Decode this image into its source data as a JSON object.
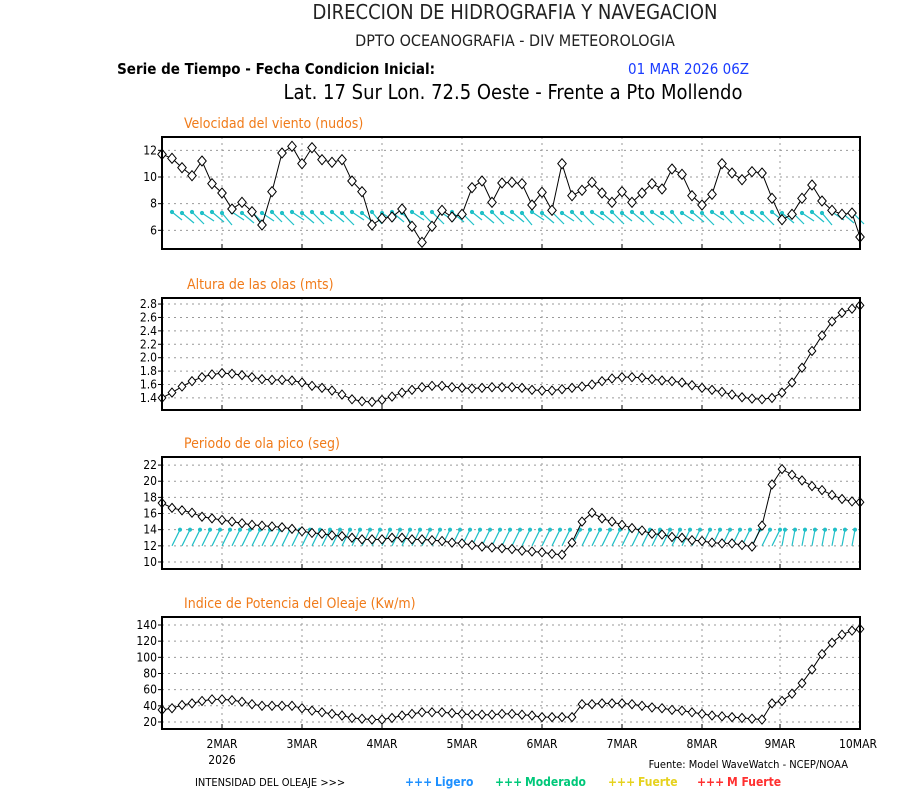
{
  "header": {
    "line1": "DIRECCION DE HIDROGRAFIA Y NAVEGACION",
    "line2": "DPTO OCEANOGRAFIA - DIV METEOROLOGIA",
    "line3_label": "Serie de Tiempo - Fecha Condicion Inicial:",
    "line3_date": "01 MAR 2026 06Z",
    "line4": "Lat. 17 Sur  Lon. 72.5 Oeste - Frente a Pto Mollendo"
  },
  "footer": {
    "year": "2026",
    "source": "Fuente: Model WaveWatch - NCEP/NOAA",
    "legend_label": "INTENSIDAD DEL OLEAJE >>>",
    "legend": [
      {
        "marker": "+++",
        "label": "Ligero",
        "color": "#1e90ff"
      },
      {
        "marker": "+++",
        "label": "Moderado",
        "color": "#00c87a"
      },
      {
        "marker": "+++",
        "label": "Fuerte",
        "color": "#e6d21e"
      },
      {
        "marker": "+++",
        "label": "M Fuerte",
        "color": "#ff3030"
      }
    ]
  },
  "colors": {
    "title": "#f07b1a",
    "arrows": "#20c0c8",
    "line": "#000000"
  },
  "chart_data": [
    {
      "type": "line",
      "title": "Velocidad del viento (nudos)",
      "x_start": "1MAR 06Z",
      "x_step_hours": 3,
      "xticks": [
        "2MAR",
        "3MAR",
        "4MAR",
        "5MAR",
        "6MAR",
        "7MAR",
        "8MAR",
        "9MAR",
        "10MAR"
      ],
      "yticks": [
        6,
        8,
        10,
        12
      ],
      "ylim": [
        4.6,
        13.0
      ],
      "grid": true,
      "direction_arrows": true,
      "values": [
        11.7,
        11.4,
        10.7,
        10.1,
        11.2,
        9.5,
        8.8,
        7.6,
        8.1,
        7.4,
        6.4,
        8.9,
        11.8,
        12.3,
        11.0,
        12.2,
        11.3,
        11.1,
        11.3,
        9.7,
        8.9,
        6.4,
        6.9,
        7.0,
        7.6,
        6.3,
        5.1,
        6.3,
        7.5,
        7.0,
        7.2,
        9.2,
        9.7,
        8.1,
        9.55,
        9.6,
        9.5,
        7.9,
        8.85,
        7.5,
        11.0,
        8.6,
        9.0,
        9.6,
        8.8,
        8.1,
        8.9,
        8.1,
        8.8,
        9.5,
        9.1,
        10.6,
        10.2,
        8.6,
        7.9,
        8.7,
        11.0,
        10.3,
        9.8,
        10.4,
        10.3,
        8.4,
        6.8,
        7.2,
        8.4,
        9.4,
        8.2,
        7.5,
        7.2,
        7.3,
        5.5
      ]
    },
    {
      "type": "line",
      "title": "Altura de las olas (mts)",
      "yticks": [
        1.4,
        1.6,
        1.8,
        2.0,
        2.2,
        2.4,
        2.6,
        2.8
      ],
      "ylim": [
        1.22,
        2.89
      ],
      "grid": true,
      "values": [
        1.4,
        1.48,
        1.57,
        1.65,
        1.71,
        1.75,
        1.77,
        1.76,
        1.74,
        1.71,
        1.68,
        1.67,
        1.67,
        1.66,
        1.63,
        1.58,
        1.55,
        1.51,
        1.45,
        1.38,
        1.35,
        1.34,
        1.37,
        1.42,
        1.48,
        1.52,
        1.56,
        1.58,
        1.58,
        1.56,
        1.55,
        1.54,
        1.55,
        1.56,
        1.56,
        1.56,
        1.55,
        1.52,
        1.51,
        1.51,
        1.53,
        1.55,
        1.57,
        1.6,
        1.65,
        1.69,
        1.71,
        1.71,
        1.7,
        1.68,
        1.66,
        1.65,
        1.63,
        1.59,
        1.55,
        1.52,
        1.49,
        1.45,
        1.41,
        1.39,
        1.38,
        1.4,
        1.48,
        1.63,
        1.85,
        2.1,
        2.33,
        2.54,
        2.67,
        2.73,
        2.78
      ]
    },
    {
      "type": "line",
      "title": "Periodo de ola pico (seg)",
      "yticks": [
        10,
        12,
        14,
        16,
        18,
        20,
        22
      ],
      "ylim": [
        9.13,
        23.0
      ],
      "grid": true,
      "direction_arrows": true,
      "values": [
        17.3,
        16.7,
        16.4,
        16.1,
        15.6,
        15.4,
        15.2,
        15.0,
        14.8,
        14.6,
        14.5,
        14.4,
        14.3,
        14.1,
        13.8,
        13.6,
        13.5,
        13.3,
        13.2,
        13.0,
        12.8,
        12.8,
        12.8,
        13.0,
        13.0,
        12.8,
        12.8,
        12.7,
        12.6,
        12.4,
        12.3,
        12.1,
        11.9,
        11.8,
        11.7,
        11.6,
        11.4,
        11.3,
        11.2,
        11.0,
        10.9,
        12.4,
        15.0,
        16.1,
        15.4,
        15.0,
        14.6,
        14.2,
        13.9,
        13.5,
        13.4,
        13.1,
        13.0,
        12.7,
        12.6,
        12.4,
        12.3,
        12.3,
        12.1,
        11.9,
        14.5,
        19.6,
        21.5,
        20.8,
        20.1,
        19.4,
        18.9,
        18.3,
        17.8,
        17.5,
        17.4
      ]
    },
    {
      "type": "line",
      "title": "Indice de Potencia del Oleaje (Kw/m)",
      "yticks": [
        20,
        40,
        60,
        80,
        100,
        120,
        140
      ],
      "ylim": [
        11.3,
        149.9
      ],
      "grid": true,
      "values": [
        35,
        37,
        41,
        43,
        46,
        48,
        48,
        47,
        45,
        42,
        40,
        40,
        40,
        40,
        37,
        34,
        32,
        30,
        28,
        25,
        24,
        23,
        23,
        25,
        28,
        30,
        32,
        32,
        32,
        31,
        30,
        29,
        29,
        29,
        30,
        30,
        29,
        28,
        26,
        26,
        26,
        26,
        42,
        42,
        43,
        43,
        43,
        42,
        40,
        38,
        37,
        35,
        34,
        32,
        30,
        28,
        27,
        26,
        25,
        24,
        23,
        43,
        46,
        55,
        68,
        85,
        104,
        118,
        128,
        133,
        135
      ]
    }
  ]
}
